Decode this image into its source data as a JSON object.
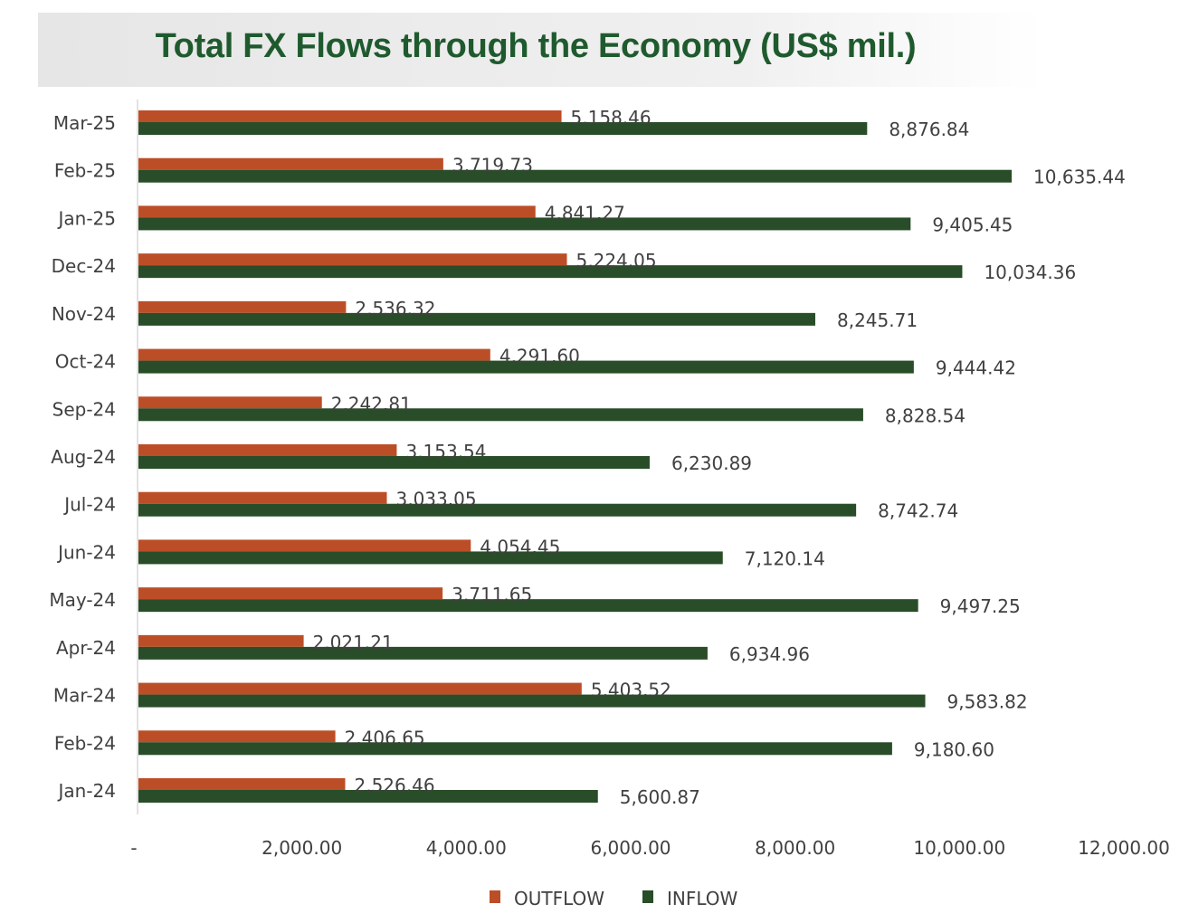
{
  "chart_data": {
    "type": "bar",
    "orientation": "horizontal",
    "title": "Total FX Flows through the Economy (US$ mil.)",
    "categories": [
      "Mar-25",
      "Feb-25",
      "Jan-25",
      "Dec-24",
      "Nov-24",
      "Oct-24",
      "Sep-24",
      "Aug-24",
      "Jul-24",
      "Jun-24",
      "May-24",
      "Apr-24",
      "Mar-24",
      "Feb-24",
      "Jan-24"
    ],
    "series": [
      {
        "name": "OUTFLOW",
        "color": "#BC4E27",
        "values": [
          5158.46,
          3719.73,
          4841.27,
          5224.05,
          2536.32,
          4291.6,
          2242.81,
          3153.54,
          3033.05,
          4054.45,
          3711.65,
          2021.21,
          5403.52,
          2406.65,
          2526.46
        ]
      },
      {
        "name": "INFLOW",
        "color": "#284D28",
        "values": [
          8876.84,
          10635.44,
          9405.45,
          10034.36,
          8245.71,
          9444.42,
          8828.54,
          6230.89,
          8742.74,
          7120.14,
          9497.25,
          6934.96,
          9583.82,
          9180.6,
          5600.87
        ]
      }
    ],
    "xlim": [
      0,
      12000
    ],
    "x_ticks": [
      0,
      2000,
      4000,
      6000,
      8000,
      10000,
      12000
    ],
    "x_tick_labels": [
      "-",
      "2,000.00",
      "4,000.00",
      "6,000.00",
      "8,000.00",
      "10,000.00",
      "12,000.00"
    ],
    "grid": false,
    "legend_position": "bottom",
    "data_labels": true
  }
}
